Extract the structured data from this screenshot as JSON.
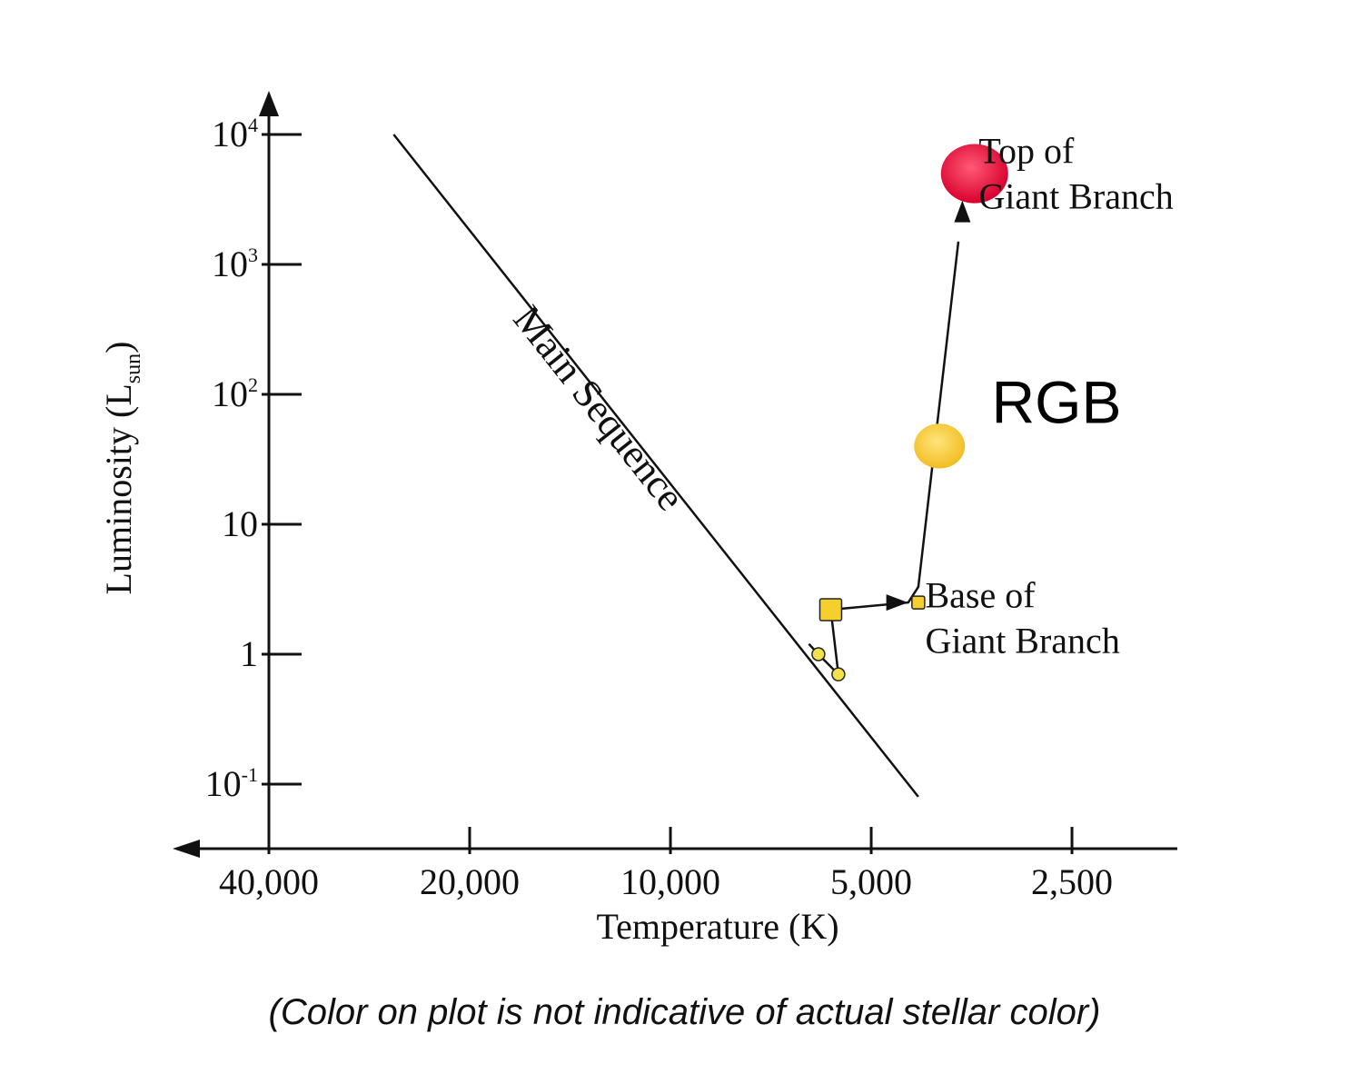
{
  "chart_data": {
    "type": "line",
    "xlabel": "Temperature (K)",
    "ylabel": "Luminosity (L",
    "ylabel_sub": "sun",
    "ylabel_close": ")",
    "x_scale": "log-reversed",
    "y_scale": "log",
    "x_ticks": [
      {
        "value": 40000,
        "label": "40,000"
      },
      {
        "value": 20000,
        "label": "20,000"
      },
      {
        "value": 10000,
        "label": "10,000"
      },
      {
        "value": 5000,
        "label": "5,000"
      },
      {
        "value": 2500,
        "label": "2,500"
      }
    ],
    "y_ticks": [
      {
        "value": 0.1,
        "base": "10",
        "exp": "-1"
      },
      {
        "value": 1,
        "base": "1",
        "exp": ""
      },
      {
        "value": 10,
        "base": "10",
        "exp": ""
      },
      {
        "value": 100,
        "base": "10",
        "exp": "2"
      },
      {
        "value": 1000,
        "base": "10",
        "exp": "3"
      },
      {
        "value": 10000,
        "base": "10",
        "exp": "4"
      }
    ],
    "grid": false,
    "main_sequence": {
      "label": "Main Sequence",
      "points": [
        {
          "T": 26000,
          "L": 10000
        },
        {
          "T": 4250,
          "L": 0.08
        }
      ]
    },
    "track": {
      "points": [
        {
          "T": 6200,
          "L": 1.2
        },
        {
          "T": 6000,
          "L": 1.0
        },
        {
          "T": 5600,
          "L": 0.7
        },
        {
          "T": 5750,
          "L": 2.2
        },
        {
          "T": 4400,
          "L": 2.5
        },
        {
          "T": 4250,
          "L": 3.3
        },
        {
          "T": 3700,
          "L": 1500
        }
      ],
      "arrow_points": [
        {
          "T": 4600,
          "L": 2.5
        },
        {
          "T": 3650,
          "L": 2400
        }
      ]
    },
    "stars": [
      {
        "T": 6000,
        "L": 1.0,
        "shape": "circle",
        "size": "small",
        "color": "#f3e04a"
      },
      {
        "T": 5600,
        "L": 0.7,
        "shape": "circle",
        "size": "small",
        "color": "#f3e04a"
      },
      {
        "T": 5750,
        "L": 2.2,
        "shape": "square",
        "size": "medium",
        "color": "#f5d02c"
      },
      {
        "T": 4250,
        "L": 2.5,
        "shape": "square",
        "size": "small",
        "color": "#f5d02c"
      },
      {
        "T": 3950,
        "L": 40,
        "shape": "circle",
        "size": "large",
        "color": "#f7c934"
      },
      {
        "T": 3500,
        "L": 5000,
        "shape": "circle",
        "size": "xlarge",
        "color": "#e8173f"
      }
    ],
    "annotations": [
      {
        "lines": [
          "Top of",
          "Giant Branch"
        ],
        "T": 3450,
        "L": 6000
      },
      {
        "lines": [
          "Base of",
          "Giant Branch"
        ],
        "T": 4150,
        "L": 2.3
      },
      {
        "text": "RGB",
        "T": 3300,
        "L": 60,
        "style": "large-sans"
      }
    ]
  },
  "caption": "(Color on plot is not indicative of actual stellar color)"
}
